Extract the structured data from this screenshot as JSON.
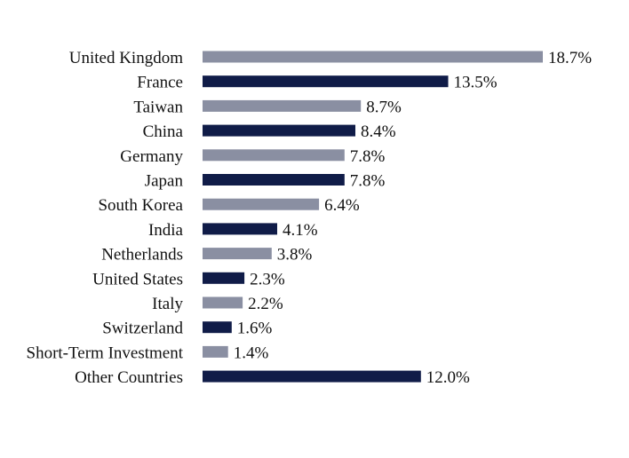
{
  "chart_data": {
    "type": "bar",
    "orientation": "horizontal",
    "categories": [
      "United Kingdom",
      "France",
      "Taiwan",
      "China",
      "Germany",
      "Japan",
      "South Korea",
      "India",
      "Netherlands",
      "United States",
      "Italy",
      "Switzerland",
      "Short-Term Investment",
      "Other Countries"
    ],
    "values": [
      18.7,
      13.5,
      8.7,
      8.4,
      7.8,
      7.8,
      6.4,
      4.1,
      3.8,
      2.3,
      2.2,
      1.6,
      1.4,
      12.0
    ],
    "value_labels": [
      "18.7%",
      "13.5%",
      "8.7%",
      "8.4%",
      "7.8%",
      "7.8%",
      "6.4%",
      "4.1%",
      "3.8%",
      "2.3%",
      "2.2%",
      "1.6%",
      "1.4%",
      "12.0%"
    ],
    "colors": {
      "light": "#8a8fa2",
      "dark": "#101c48"
    },
    "bar_color_pattern": [
      "light",
      "dark"
    ],
    "title": "",
    "xlabel": "",
    "ylabel": "",
    "xlim": [
      0,
      18.7
    ],
    "grid": false,
    "legend": "none"
  }
}
